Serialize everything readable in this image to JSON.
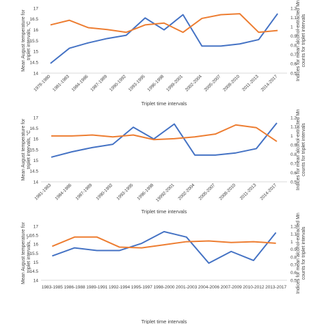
{
  "chart_data": [
    {
      "type": "line",
      "xlabel": "Triplet time intervals",
      "ylabel_left": "Mean August temperature for triplet intervals, °C",
      "ylabel_right": "Indices for mean alcohol-extracted Mn counts for triplet intervals",
      "ylim_left": [
        14,
        17
      ],
      "ylim_right": [
        0.5,
        1.2
      ],
      "left_ticks": [
        "14",
        "14.5",
        "15",
        "15.5",
        "16",
        "16.5",
        "17"
      ],
      "right_ticks": [
        "0.5",
        "0.6",
        "0.7",
        "0.8",
        "0.9",
        "1",
        "1.1",
        "1.2"
      ],
      "categories": [
        "1978-1980",
        "1981-1983",
        "1984-1986",
        "1987-1989",
        "1990-1992",
        "1993-1995",
        "1996-1998",
        "1999-2001",
        "2002-2004",
        "2005-2007",
        "2008-2010",
        "2011-2013",
        "2014-2017"
      ],
      "series": [
        {
          "axis": "left",
          "color": "#4472c4",
          "values": [
            14.45,
            15.15,
            15.4,
            15.6,
            15.75,
            16.55,
            16.0,
            16.7,
            15.25,
            15.25,
            15.35,
            15.55,
            16.75
          ]
        },
        {
          "axis": "right",
          "color": "#ed7d31",
          "values": [
            1.02,
            1.07,
            0.99,
            0.97,
            0.94,
            1.02,
            1.04,
            0.94,
            1.09,
            1.13,
            1.14,
            0.94,
            0.96
          ]
        }
      ],
      "grid": false
    },
    {
      "type": "line",
      "xlabel": "Triplet time intervals",
      "ylabel_left": "Mean August temperature for triplet intervals, °C",
      "ylabel_right": "Indices for mean alcohol-extracted Mn counts for triplet intervals",
      "ylim_left": [
        14,
        17
      ],
      "ylim_right": [
        0.5,
        1.2
      ],
      "left_ticks": [
        "14",
        "14.5",
        "15",
        "15.5",
        "16",
        "16.5",
        "17"
      ],
      "right_ticks": [
        "0.5",
        "0.6",
        "0.7",
        "0.8",
        "0.9",
        "1",
        "1.1",
        "1.2"
      ],
      "categories": [
        "1981-1983",
        "1984-1986",
        "1987-1989",
        "1990-1992",
        "1993-1995",
        "1996-1998",
        "19992-2001",
        "2002-2004",
        "2005-2007",
        "2008-2010",
        "2011-2013",
        "2014-2017"
      ],
      "series": [
        {
          "axis": "left",
          "color": "#4472c4",
          "values": [
            15.15,
            15.4,
            15.6,
            15.75,
            16.55,
            16.0,
            16.7,
            15.25,
            15.25,
            15.35,
            15.55,
            16.75
          ]
        },
        {
          "axis": "right",
          "color": "#ed7d31",
          "values": [
            1.0,
            1.0,
            1.01,
            0.99,
            1.01,
            0.96,
            0.97,
            0.99,
            1.02,
            1.12,
            1.09,
            0.94
          ]
        }
      ],
      "grid": false
    },
    {
      "type": "line",
      "xlabel": "Triplet time intervals",
      "ylabel_left": "Mean August temperature for triplet intervals, °C",
      "ylabel_right": "Indices for mean alcohol-extracted Mn counts for triplet intervals",
      "ylim_left": [
        14,
        17
      ],
      "ylim_right": [
        0.5,
        1.2
      ],
      "left_ticks": [
        "14",
        "14.5",
        "15",
        "15.5",
        "16",
        "16.5",
        "17"
      ],
      "right_ticks": [
        "0.5",
        "0.6",
        "0.7",
        "0.8",
        "0.9",
        "1",
        "1.1",
        "1.2"
      ],
      "categories": [
        "1983-1985",
        "1986-1988",
        "1989-1991",
        "1992-1994",
        "1995-1997",
        "1998-2000",
        "2001-2003",
        "2004-2006",
        "2007-2009",
        "2010-2012",
        "2013-2017"
      ],
      "series": [
        {
          "axis": "left",
          "color": "#4472c4",
          "values": [
            15.35,
            15.8,
            15.65,
            15.65,
            16.05,
            16.7,
            16.4,
            14.95,
            15.6,
            15.1,
            16.65
          ]
        },
        {
          "axis": "right",
          "color": "#ed7d31",
          "values": [
            0.94,
            1.06,
            1.06,
            0.93,
            0.92,
            0.96,
            1.0,
            1.01,
            0.99,
            1.0,
            0.98
          ]
        }
      ],
      "grid": false
    }
  ]
}
